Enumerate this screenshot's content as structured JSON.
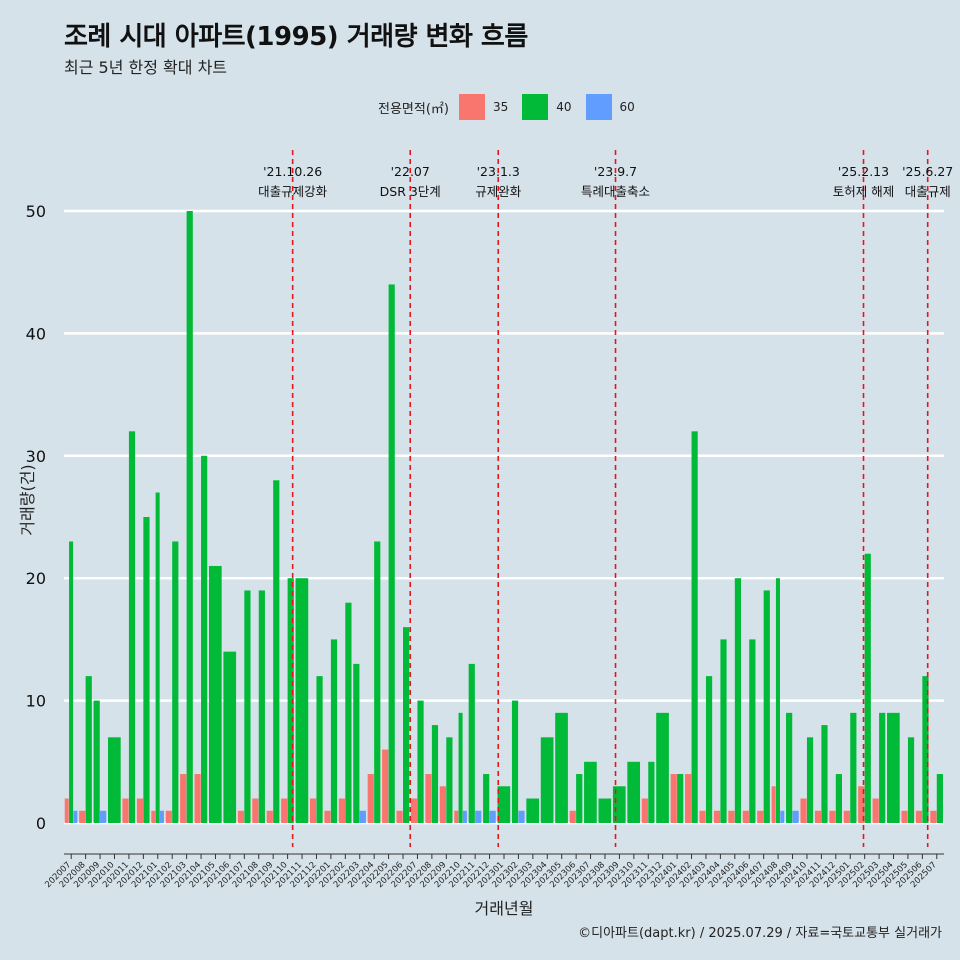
{
  "title": "조례 시대 아파트(1995) 거래량 변화 흐름",
  "subtitle": "최근 5년 한정 확대 차트",
  "caption": "©디아파트(dapt.kr) / 2025.07.29 / 자료=국토교통부 실거래가",
  "legend": {
    "title": "전용면적(㎡)",
    "items": [
      {
        "label": "35",
        "color": "#f8766d"
      },
      {
        "label": "40",
        "color": "#00ba38"
      },
      {
        "label": "60",
        "color": "#619cff"
      }
    ]
  },
  "chart_data": {
    "type": "bar",
    "xlabel": "거래년월",
    "ylabel": "거래량(건)",
    "ylim": [
      0,
      52
    ],
    "yticks": [
      0,
      10,
      20,
      30,
      40,
      50
    ],
    "grid": true,
    "legend_position": "top",
    "categories": [
      "202007",
      "202008",
      "202009",
      "202010",
      "202011",
      "202012",
      "202101",
      "202102",
      "202103",
      "202104",
      "202105",
      "202106",
      "202107",
      "202108",
      "202109",
      "202110",
      "202111",
      "202112",
      "202201",
      "202202",
      "202203",
      "202204",
      "202205",
      "202206",
      "202207",
      "202208",
      "202209",
      "202210",
      "202211",
      "202212",
      "202301",
      "202302",
      "202303",
      "202304",
      "202305",
      "202306",
      "202307",
      "202308",
      "202309",
      "202310",
      "202311",
      "202312",
      "202401",
      "202402",
      "202403",
      "202404",
      "202405",
      "202406",
      "202407",
      "202408",
      "202409",
      "202410",
      "202411",
      "202412",
      "202501",
      "202502",
      "202503",
      "202504",
      "202505",
      "202506",
      "202507"
    ],
    "series": [
      {
        "name": "35",
        "color": "#f8766d",
        "values": [
          2,
          1,
          null,
          null,
          2,
          2,
          1,
          1,
          4,
          4,
          null,
          null,
          1,
          2,
          1,
          2,
          null,
          2,
          1,
          2,
          null,
          4,
          6,
          1,
          2,
          4,
          3,
          1,
          null,
          null,
          null,
          null,
          null,
          null,
          null,
          1,
          null,
          null,
          null,
          null,
          2,
          null,
          4,
          4,
          1,
          1,
          1,
          1,
          1,
          3,
          null,
          2,
          1,
          1,
          1,
          3,
          2,
          null,
          1,
          1,
          1
        ]
      },
      {
        "name": "40",
        "color": "#00ba38",
        "values": [
          23,
          12,
          10,
          7,
          32,
          25,
          27,
          23,
          50,
          30,
          21,
          14,
          19,
          19,
          28,
          20,
          20,
          12,
          15,
          18,
          13,
          23,
          44,
          16,
          10,
          8,
          7,
          9,
          13,
          4,
          3,
          10,
          2,
          7,
          9,
          4,
          5,
          2,
          3,
          5,
          5,
          9,
          4,
          32,
          12,
          15,
          20,
          15,
          19,
          20,
          9,
          7,
          8,
          4,
          9,
          22,
          9,
          9,
          7,
          12,
          4
        ]
      },
      {
        "name": "60",
        "color": "#619cff",
        "values": [
          1,
          null,
          1,
          null,
          null,
          null,
          1,
          null,
          null,
          null,
          null,
          null,
          null,
          null,
          null,
          null,
          null,
          null,
          null,
          null,
          1,
          null,
          null,
          null,
          null,
          null,
          null,
          1,
          1,
          1,
          null,
          1,
          null,
          null,
          null,
          null,
          null,
          null,
          null,
          null,
          null,
          null,
          null,
          null,
          null,
          null,
          null,
          null,
          null,
          1,
          1,
          null,
          null,
          null,
          null,
          null,
          null,
          null,
          null,
          null,
          null
        ]
      }
    ],
    "annotations": [
      {
        "date": "'21.10.26",
        "label": "대출규제강화",
        "x_month": "202110",
        "offset": 0.85
      },
      {
        "date": "'22.07",
        "label": "DSR 3단계",
        "x_month": "202207",
        "offset": 0.0
      },
      {
        "date": "'23.1.3",
        "label": "규제완화",
        "x_month": "202301",
        "offset": 0.1
      },
      {
        "date": "'23.9.7",
        "label": "특례대출축소",
        "x_month": "202309",
        "offset": 0.23
      },
      {
        "date": "'25.2.13",
        "label": "토허제 해제",
        "x_month": "202502",
        "offset": 0.42
      },
      {
        "date": "'25.6.27",
        "label": "대출규제",
        "x_month": "202506",
        "offset": 0.87
      }
    ]
  }
}
